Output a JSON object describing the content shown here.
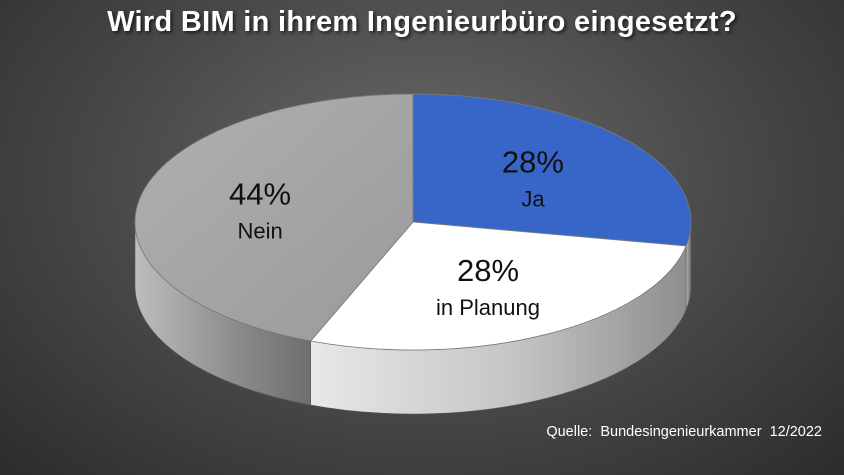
{
  "chart_data": {
    "type": "pie",
    "title": "Wird BIM in ihrem Ingenieurbüro eingesetzt?",
    "slices": [
      {
        "label": "Ja",
        "value": 28,
        "value_label": "28%",
        "color": "#3866c8"
      },
      {
        "label": "in Planung",
        "value": 28,
        "value_label": "28%",
        "color": "#ffffff"
      },
      {
        "label": "Nein",
        "value": 44,
        "value_label": "44%",
        "color": "#a6a6a6"
      }
    ],
    "style": "3d",
    "legend": "none"
  },
  "source": "Quelle:  Bundesingenieurkammer  12/2022"
}
